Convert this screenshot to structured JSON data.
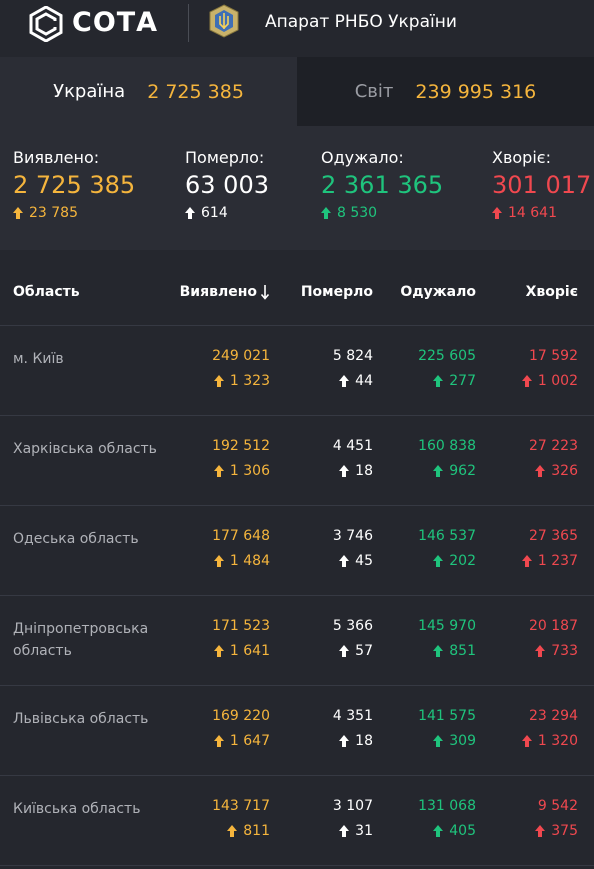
{
  "header": {
    "brand": "СОТА",
    "org": "Апарат РНБО України",
    "logo_icon": "sota-logo-icon",
    "emblem_icon": "rnbo-emblem-icon"
  },
  "tabs": [
    {
      "label": "Україна",
      "value": "2 725 385",
      "active": true
    },
    {
      "label": "Світ",
      "value": "239 995 316",
      "active": false
    }
  ],
  "summary": [
    {
      "label": "Виявлено:",
      "value": "2 725 385",
      "delta": "23 785",
      "color": "#f5b53d"
    },
    {
      "label": "Померло:",
      "value": "63 003",
      "delta": "614",
      "color": "#ffffff"
    },
    {
      "label": "Одужало:",
      "value": "2 361 365",
      "delta": "8 530",
      "color": "#1fc47d"
    },
    {
      "label": "Хворіє:",
      "value": "301 017",
      "delta": "14 641",
      "color": "#f0484f"
    }
  ],
  "table": {
    "headers": {
      "region": "Область",
      "detected": "Виявлено",
      "sort_icon": "sort-down-arrow-icon",
      "died": "Померло",
      "recovered": "Одужало",
      "sick": "Хворіє"
    },
    "rows": [
      {
        "region": "м. Київ",
        "detected": "249 021",
        "detected_d": "1 323",
        "died": "5 824",
        "died_d": "44",
        "recovered": "225 605",
        "recovered_d": "277",
        "sick": "17 592",
        "sick_d": "1 002"
      },
      {
        "region": "Харківська область",
        "detected": "192 512",
        "detected_d": "1 306",
        "died": "4 451",
        "died_d": "18",
        "recovered": "160 838",
        "recovered_d": "962",
        "sick": "27 223",
        "sick_d": "326"
      },
      {
        "region": "Одеська область",
        "detected": "177 648",
        "detected_d": "1 484",
        "died": "3 746",
        "died_d": "45",
        "recovered": "146 537",
        "recovered_d": "202",
        "sick": "27 365",
        "sick_d": "1 237"
      },
      {
        "region": "Дніпропетровська область",
        "detected": "171 523",
        "detected_d": "1 641",
        "died": "5 366",
        "died_d": "57",
        "recovered": "145 970",
        "recovered_d": "851",
        "sick": "20 187",
        "sick_d": "733"
      },
      {
        "region": "Львівська область",
        "detected": "169 220",
        "detected_d": "1 647",
        "died": "4 351",
        "died_d": "18",
        "recovered": "141 575",
        "recovered_d": "309",
        "sick": "23 294",
        "sick_d": "1 320"
      },
      {
        "region": "Київська область",
        "detected": "143 717",
        "detected_d": "811",
        "died": "3 107",
        "died_d": "31",
        "recovered": "131 068",
        "recovered_d": "405",
        "sick": "9 542",
        "sick_d": "375"
      }
    ]
  }
}
